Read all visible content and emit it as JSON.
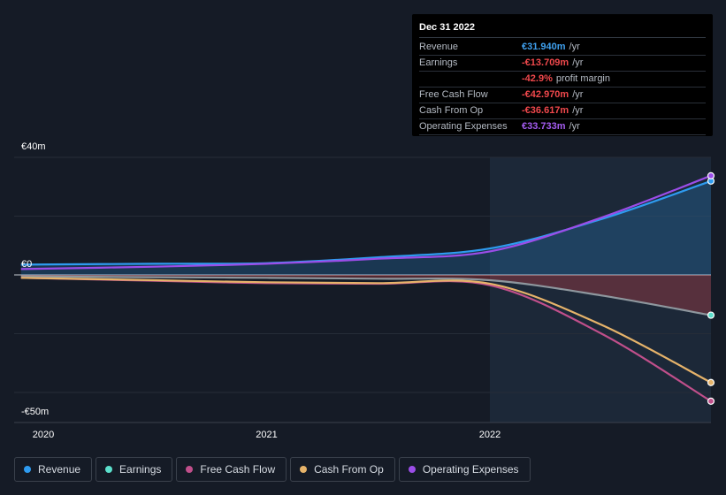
{
  "colors": {
    "revenue": "#2e9bf0",
    "earnings": "#5ce0cc",
    "fcf": "#c04f8b",
    "cfo": "#e6b36a",
    "opex": "#9b4de8",
    "red": "#f0484c",
    "blue": "#3fa0ee",
    "purple": "#a45cf0"
  },
  "tooltip": {
    "date": "Dec 31 2022",
    "rows": [
      {
        "label": "Revenue",
        "value": "€31.940m",
        "unit": "/yr",
        "color": "#3fa0ee"
      },
      {
        "label": "Earnings",
        "value": "-€13.709m",
        "unit": "/yr",
        "color": "#f0484c"
      },
      {
        "label": "",
        "value": "-42.9%",
        "unit": "profit margin",
        "color": "#f0484c"
      },
      {
        "label": "Free Cash Flow",
        "value": "-€42.970m",
        "unit": "/yr",
        "color": "#f0484c"
      },
      {
        "label": "Cash From Op",
        "value": "-€36.617m",
        "unit": "/yr",
        "color": "#f0484c"
      },
      {
        "label": "Operating Expenses",
        "value": "€33.733m",
        "unit": "/yr",
        "color": "#a45cf0"
      }
    ]
  },
  "chart_data": {
    "type": "line",
    "x": [
      2019.9,
      2020.5,
      2021.0,
      2021.5,
      2022.0,
      2022.5,
      2022.99
    ],
    "xticks": [
      "2020",
      "2021",
      "2022"
    ],
    "xtick_values": [
      2020,
      2021,
      2022
    ],
    "y_top_label": "€40m",
    "y_zero_label": "€0",
    "y_bottom_label": "-€50m",
    "ylim": [
      -50,
      40
    ],
    "series": [
      {
        "name": "Revenue",
        "key": "revenue",
        "values": [
          3.5,
          3.8,
          4.0,
          6.0,
          9.0,
          19.0,
          31.94
        ]
      },
      {
        "name": "Earnings",
        "key": "earnings",
        "values": [
          -0.5,
          -0.8,
          -1.0,
          -1.3,
          -1.8,
          -7.0,
          -13.709
        ]
      },
      {
        "name": "Free Cash Flow",
        "key": "fcf",
        "values": [
          -1.0,
          -2.0,
          -2.8,
          -3.0,
          -3.5,
          -20.0,
          -42.97
        ]
      },
      {
        "name": "Cash From Op",
        "key": "cfo",
        "values": [
          -1.0,
          -1.8,
          -2.5,
          -2.8,
          -3.0,
          -17.0,
          -36.617
        ]
      },
      {
        "name": "Operating Expenses",
        "key": "opex",
        "values": [
          2.0,
          2.8,
          3.8,
          5.5,
          8.0,
          19.5,
          33.733
        ]
      }
    ],
    "legend": [
      "Revenue",
      "Earnings",
      "Free Cash Flow",
      "Cash From Op",
      "Operating Expenses"
    ],
    "legend_position": "bottom-left",
    "grid": true
  }
}
